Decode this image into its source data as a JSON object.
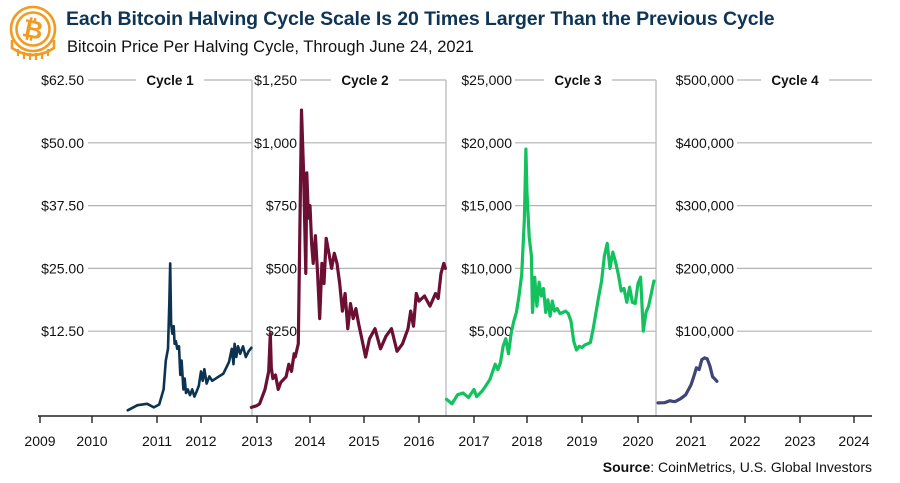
{
  "header": {
    "title": "Each Bitcoin Halving Cycle Scale Is 20 Times Larger Than the Previous Cycle",
    "subtitle": "Bitcoin Price Per Halving Cycle, Through June 24, 2021",
    "logo_icon": "bitcoin-coin-icon"
  },
  "footer": {
    "source_label": "Source",
    "source_text": ": CoinMetrics, U.S. Global Investors"
  },
  "colors": {
    "title": "#0e3555",
    "logo": "#f39a21",
    "cycle1": "#0d3353",
    "cycle2": "#6b0f33",
    "cycle3": "#13c25f",
    "cycle4": "#3e4577",
    "grid": "#b3b3b3",
    "axis": "#222222"
  },
  "chart_data": {
    "type": "line",
    "title": "Each Bitcoin Halving Cycle Scale Is 20 Times Larger Than the Previous Cycle",
    "subtitle": "Bitcoin Price Per Halving Cycle, Through June 24, 2021",
    "xlabel": "",
    "ylabel": "",
    "x_ticks": [
      "2009",
      "2010",
      "2011",
      "2012",
      "2013",
      "2014",
      "2015",
      "2016",
      "2017",
      "2018",
      "2019",
      "2020",
      "2021",
      "2022",
      "2023",
      "2024"
    ],
    "grid": true,
    "legend": "none",
    "panels": [
      {
        "name": "Cycle 1",
        "x_range": [
          2009.0,
          2012.9
        ],
        "ylim": [
          0,
          62.5
        ],
        "y_ticks": [
          "$12.50",
          "$25.00",
          "$37.50",
          "$50.00",
          "$62.50"
        ],
        "y_tick_values": [
          12.5,
          25,
          37.5,
          50,
          62.5
        ],
        "series": {
          "name": "Cycle 1",
          "x": [
            2010.55,
            2010.7,
            2010.85,
            2010.95,
            2011.05,
            2011.15,
            2011.2,
            2011.25,
            2011.28,
            2011.3,
            2011.32,
            2011.35,
            2011.38,
            2011.4,
            2011.43,
            2011.46,
            2011.5,
            2011.53,
            2011.56,
            2011.6,
            2011.63,
            2011.66,
            2011.7,
            2011.75,
            2011.8,
            2011.85,
            2011.9,
            2011.95,
            2012.0,
            2012.03,
            2012.06,
            2012.1,
            2012.15,
            2012.2,
            2012.3,
            2012.4,
            2012.5,
            2012.55,
            2012.58,
            2012.6,
            2012.63,
            2012.66,
            2012.7,
            2012.75,
            2012.8,
            2012.85,
            2012.9
          ],
          "y": [
            0.1,
            0.8,
            1.0,
            0.5,
            0.9,
            3.0,
            7.0,
            9.0,
            18.0,
            26.0,
            14.0,
            12.0,
            13.5,
            10.0,
            10.5,
            9.0,
            9.5,
            5.0,
            7.0,
            3.0,
            4.5,
            2.5,
            3.0,
            2.2,
            3.0,
            2.0,
            2.7,
            3.5,
            5.5,
            4.2,
            5.8,
            3.8,
            4.8,
            4.2,
            4.7,
            5.2,
            6.8,
            9.0,
            6.5,
            10.0,
            7.5,
            9.5,
            8.0,
            9.5,
            7.5,
            8.5,
            9.2
          ]
        }
      },
      {
        "name": "Cycle 2",
        "x_range": [
          2012.9,
          2016.5
        ],
        "ylim": [
          0,
          1250
        ],
        "y_ticks": [
          "$250",
          "$500",
          "$750",
          "$1,000",
          "$1,250"
        ],
        "y_tick_values": [
          250,
          500,
          750,
          1000,
          1250
        ],
        "series": {
          "name": "Cycle 2",
          "x": [
            2012.9,
            2013.0,
            2013.05,
            2013.15,
            2013.22,
            2013.25,
            2013.27,
            2013.3,
            2013.35,
            2013.4,
            2013.45,
            2013.55,
            2013.6,
            2013.65,
            2013.7,
            2013.72,
            2013.78,
            2013.84,
            2013.88,
            2013.92,
            2013.94,
            2013.97,
            2014.0,
            2014.03,
            2014.06,
            2014.1,
            2014.14,
            2014.18,
            2014.22,
            2014.26,
            2014.3,
            2014.35,
            2014.4,
            2014.45,
            2014.5,
            2014.55,
            2014.6,
            2014.65,
            2014.7,
            2014.75,
            2014.8,
            2014.85,
            2014.9,
            2014.95,
            2015.03,
            2015.1,
            2015.2,
            2015.3,
            2015.4,
            2015.5,
            2015.6,
            2015.7,
            2015.8,
            2015.85,
            2015.9,
            2015.95,
            2016.0,
            2016.1,
            2016.2,
            2016.3,
            2016.35,
            2016.4,
            2016.45,
            2016.48
          ],
          "y": [
            10,
            15,
            20,
            60,
            110,
            240,
            120,
            90,
            100,
            60,
            80,
            95,
            130,
            110,
            160,
            150,
            200,
            1130,
            880,
            480,
            880,
            700,
            750,
            600,
            520,
            630,
            480,
            300,
            520,
            440,
            620,
            560,
            500,
            560,
            520,
            440,
            330,
            400,
            260,
            360,
            300,
            340,
            280,
            230,
            150,
            220,
            260,
            180,
            230,
            260,
            170,
            200,
            260,
            330,
            270,
            400,
            370,
            390,
            350,
            400,
            380,
            480,
            520,
            500
          ]
        }
      },
      {
        "name": "Cycle 3",
        "x_range": [
          2016.5,
          2020.35
        ],
        "ylim": [
          0,
          25000
        ],
        "y_ticks": [
          "$5,000",
          "$10,000",
          "$15,000",
          "$20,000",
          "$25,000"
        ],
        "y_tick_values": [
          5000,
          10000,
          15000,
          20000,
          25000
        ],
        "series": {
          "name": "Cycle 3",
          "x": [
            2016.5,
            2016.6,
            2016.7,
            2016.8,
            2016.9,
            2017.0,
            2017.05,
            2017.15,
            2017.2,
            2017.3,
            2017.4,
            2017.45,
            2017.5,
            2017.55,
            2017.6,
            2017.65,
            2017.7,
            2017.75,
            2017.8,
            2017.85,
            2017.9,
            2017.95,
            2017.98,
            2018.0,
            2018.04,
            2018.08,
            2018.1,
            2018.14,
            2018.18,
            2018.22,
            2018.26,
            2018.3,
            2018.34,
            2018.38,
            2018.42,
            2018.46,
            2018.5,
            2018.55,
            2018.6,
            2018.65,
            2018.7,
            2018.75,
            2018.8,
            2018.85,
            2018.9,
            2018.95,
            2019.0,
            2019.05,
            2019.1,
            2019.15,
            2019.2,
            2019.3,
            2019.35,
            2019.4,
            2019.45,
            2019.5,
            2019.55,
            2019.6,
            2019.65,
            2019.7,
            2019.75,
            2019.8,
            2019.85,
            2019.9,
            2019.95,
            2020.0,
            2020.05,
            2020.1,
            2020.15,
            2020.2,
            2020.25,
            2020.3
          ],
          "y": [
            650,
            400,
            900,
            1000,
            750,
            1200,
            800,
            1100,
            1300,
            1750,
            2600,
            2300,
            2700,
            3800,
            4400,
            3200,
            4800,
            5800,
            6500,
            7800,
            9500,
            14000,
            19500,
            16000,
            12500,
            11000,
            6500,
            9300,
            7000,
            8900,
            7800,
            8400,
            6500,
            7500,
            6200,
            7400,
            6600,
            6800,
            6400,
            6500,
            6600,
            6400,
            5800,
            4200,
            3500,
            3800,
            3700,
            3900,
            4000,
            4100,
            5200,
            7800,
            9000,
            11000,
            12000,
            10000,
            11300,
            10500,
            9500,
            8200,
            8400,
            7300,
            8500,
            7300,
            7200,
            8800,
            9300,
            5000,
            6500,
            7000,
            8000,
            9000
          ]
        }
      },
      {
        "name": "Cycle 4",
        "x_range": [
          2020.35,
          2024.3
        ],
        "ylim": [
          0,
          500000
        ],
        "y_ticks": [
          "$100,000",
          "$200,000",
          "$300,000",
          "$400,000",
          "$500,000"
        ],
        "y_tick_values": [
          100000,
          200000,
          300000,
          400000,
          500000
        ],
        "series": {
          "name": "Cycle 4",
          "x": [
            2020.38,
            2020.5,
            2020.6,
            2020.65,
            2020.7,
            2020.8,
            2020.9,
            2021.0,
            2021.05,
            2021.1,
            2021.15,
            2021.2,
            2021.25,
            2021.3,
            2021.35,
            2021.4,
            2021.45,
            2021.48
          ],
          "y": [
            9000,
            9200,
            11500,
            10800,
            10500,
            13500,
            18000,
            29000,
            38000,
            48000,
            46000,
            57000,
            59000,
            58000,
            50000,
            38000,
            35000,
            33000
          ]
        }
      }
    ]
  }
}
